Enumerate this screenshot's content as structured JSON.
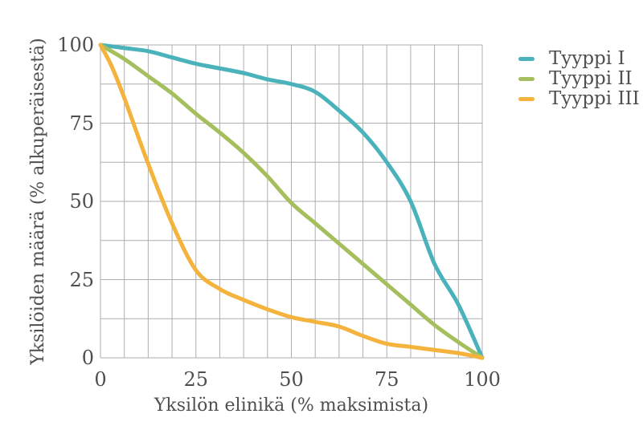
{
  "figure": {
    "background_color": "#ffffff",
    "text_color": "#4f4f4f"
  },
  "y_axis": {
    "title": "Yksilöiden määrä (% alkuperäisestä)",
    "tick_labels": [
      "100",
      "75",
      "50",
      "25",
      "0"
    ]
  },
  "x_axis": {
    "title": "Yksilön elinikä (% maksimista)",
    "tick_labels": [
      "0",
      "25",
      "50",
      "75",
      "100"
    ]
  },
  "legend": {
    "position": "top-right",
    "items": [
      {
        "label": "Tyyppi I",
        "color": "#49b2bb"
      },
      {
        "label": "Tyyppi II",
        "color": "#a6bf5e"
      },
      {
        "label": "Tyyppi III",
        "color": "#f3b33d"
      }
    ]
  },
  "chart_data": {
    "type": "line",
    "title": "",
    "xlabel": "Yksilön elinikä (% maksimista)",
    "ylabel": "Yksilöiden määrä (% alkuperäisestä)",
    "xlim": [
      0,
      100
    ],
    "ylim": [
      0,
      100
    ],
    "x_major_ticks": [
      0,
      25,
      50,
      75,
      100
    ],
    "y_major_ticks": [
      100,
      75,
      50,
      25,
      0
    ],
    "grid": {
      "on": true,
      "x_step": 6.25,
      "y_step": 12.5,
      "color": "#aeaeae"
    },
    "line_width": 5,
    "legend_position": "top-right",
    "series": [
      {
        "name": "Tyyppi I",
        "color": "#49b2bb",
        "x": [
          0,
          6.25,
          12.5,
          18.75,
          25,
          31.25,
          37.5,
          43.75,
          50,
          56.25,
          62.5,
          68.75,
          75,
          81.25,
          87.5,
          93.75,
          100
        ],
        "y": [
          100,
          99,
          98,
          96,
          94,
          92.5,
          91,
          89,
          87.5,
          85,
          79,
          72,
          62.5,
          50,
          30,
          17,
          0
        ]
      },
      {
        "name": "Tyyppi II",
        "color": "#a6bf5e",
        "x": [
          0,
          6.25,
          12.5,
          18.75,
          25,
          31.25,
          37.5,
          43.75,
          50,
          56.25,
          62.5,
          68.75,
          75,
          81.25,
          87.5,
          93.75,
          100
        ],
        "y": [
          100,
          95.5,
          90,
          84.5,
          78,
          72,
          65.5,
          58,
          49.5,
          43,
          36.5,
          30,
          23.5,
          17,
          10.5,
          5,
          0
        ]
      },
      {
        "name": "Tyyppi III",
        "color": "#f3b33d",
        "x": [
          0,
          3,
          6.25,
          12.5,
          18.75,
          25,
          31.25,
          37.5,
          43.75,
          50,
          56.25,
          62.5,
          68.75,
          75,
          81.25,
          87.5,
          93.75,
          100
        ],
        "y": [
          100,
          93,
          83,
          62,
          43,
          28,
          22,
          18.5,
          15.5,
          13,
          11.5,
          10,
          7,
          4.5,
          3.5,
          2.5,
          1.5,
          0
        ]
      }
    ]
  }
}
